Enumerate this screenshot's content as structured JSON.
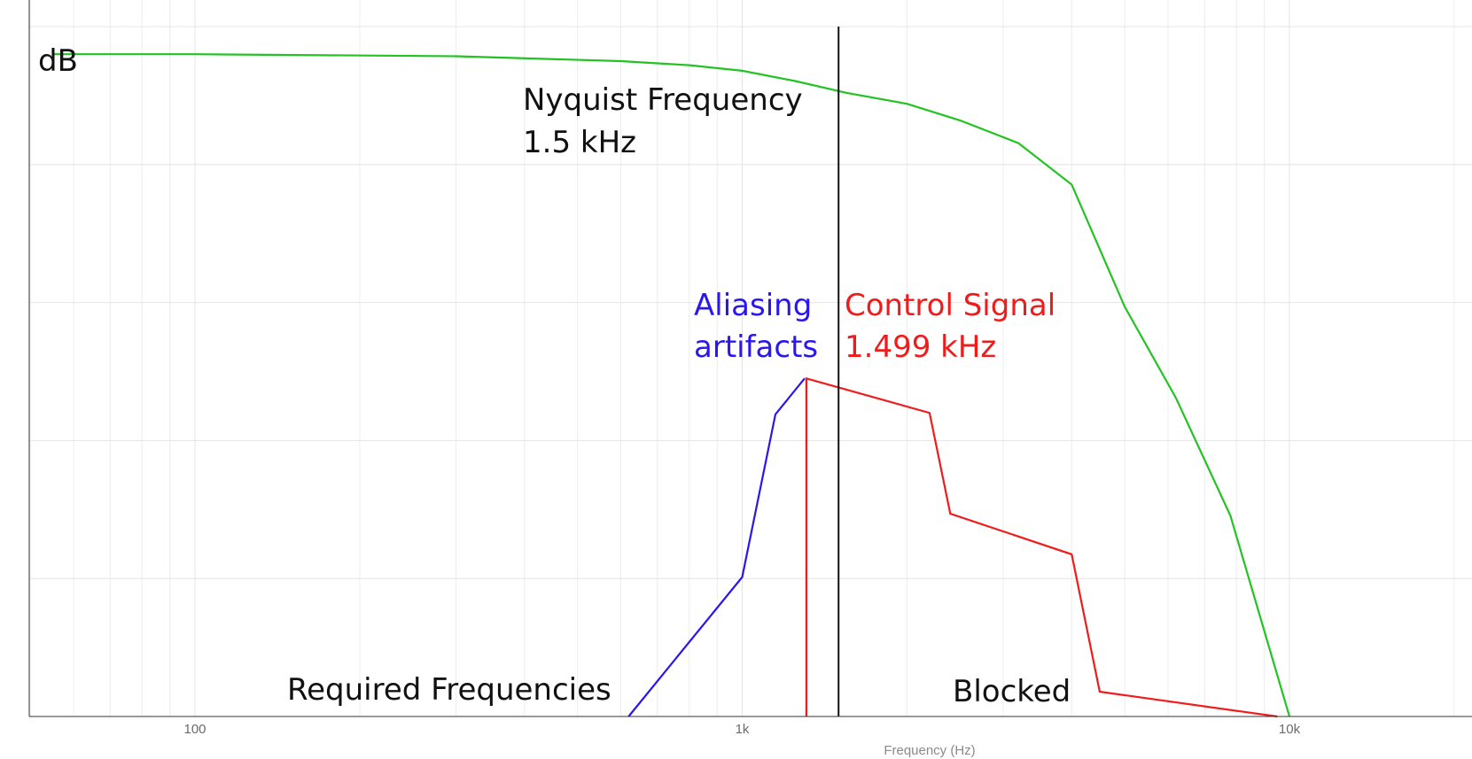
{
  "chart_data": {
    "type": "line",
    "x_scale": "log",
    "xlim": [
      55,
      30000
    ],
    "ylim": [
      0,
      100
    ],
    "grid": true,
    "xlabel": "Frequency (Hz)",
    "ylabel": "dB",
    "x_tick_labels": [
      {
        "value": 100,
        "label": "100"
      },
      {
        "value": 1000,
        "label": "1k"
      },
      {
        "value": 10000,
        "label": "10k"
      }
    ],
    "y_grid_values": [
      0,
      20,
      40,
      60,
      80,
      100
    ],
    "series": [
      {
        "id": "filter-response",
        "color": "#22c322",
        "points": [
          [
            55,
            96
          ],
          [
            100,
            96
          ],
          [
            300,
            95.7
          ],
          [
            600,
            95
          ],
          [
            800,
            94.4
          ],
          [
            1000,
            93.6
          ],
          [
            1250,
            92.1
          ],
          [
            1550,
            90.4
          ],
          [
            2000,
            88.8
          ],
          [
            2500,
            86.4
          ],
          [
            3200,
            83.1
          ],
          [
            4000,
            77.1
          ],
          [
            5000,
            59.4
          ],
          [
            6200,
            46.2
          ],
          [
            7800,
            29.1
          ],
          [
            10000,
            0
          ]
        ]
      },
      {
        "id": "aliasing-artifacts",
        "color": "#2a16f0",
        "points": [
          [
            620,
            0
          ],
          [
            1000,
            20.2
          ],
          [
            1150,
            43.8
          ],
          [
            1300,
            49
          ]
        ]
      },
      {
        "id": "control-signal",
        "color": "#f01b1b",
        "points": [
          [
            1310,
            0
          ],
          [
            1310,
            49
          ],
          [
            2200,
            44
          ],
          [
            2400,
            29.4
          ],
          [
            4000,
            23.5
          ],
          [
            4500,
            3.6
          ],
          [
            9500,
            0
          ]
        ]
      }
    ],
    "nyquist_line": {
      "x": 1500,
      "color": "#111111"
    },
    "annotations": [
      {
        "id": "nyquist-label",
        "lines": [
          "Nyquist Frequency",
          "1.5 kHz"
        ],
        "color": "#111111"
      },
      {
        "id": "aliasing-label",
        "lines": [
          "Aliasing",
          "artifacts"
        ],
        "color": "#2a16f0"
      },
      {
        "id": "control-label",
        "lines": [
          "Control Signal",
          "1.499 kHz"
        ],
        "color": "#f01b1b"
      },
      {
        "id": "required-label",
        "lines": [
          "Required Frequencies"
        ],
        "color": "#111111"
      },
      {
        "id": "blocked-label",
        "lines": [
          "Blocked"
        ],
        "color": "#111111"
      }
    ]
  }
}
